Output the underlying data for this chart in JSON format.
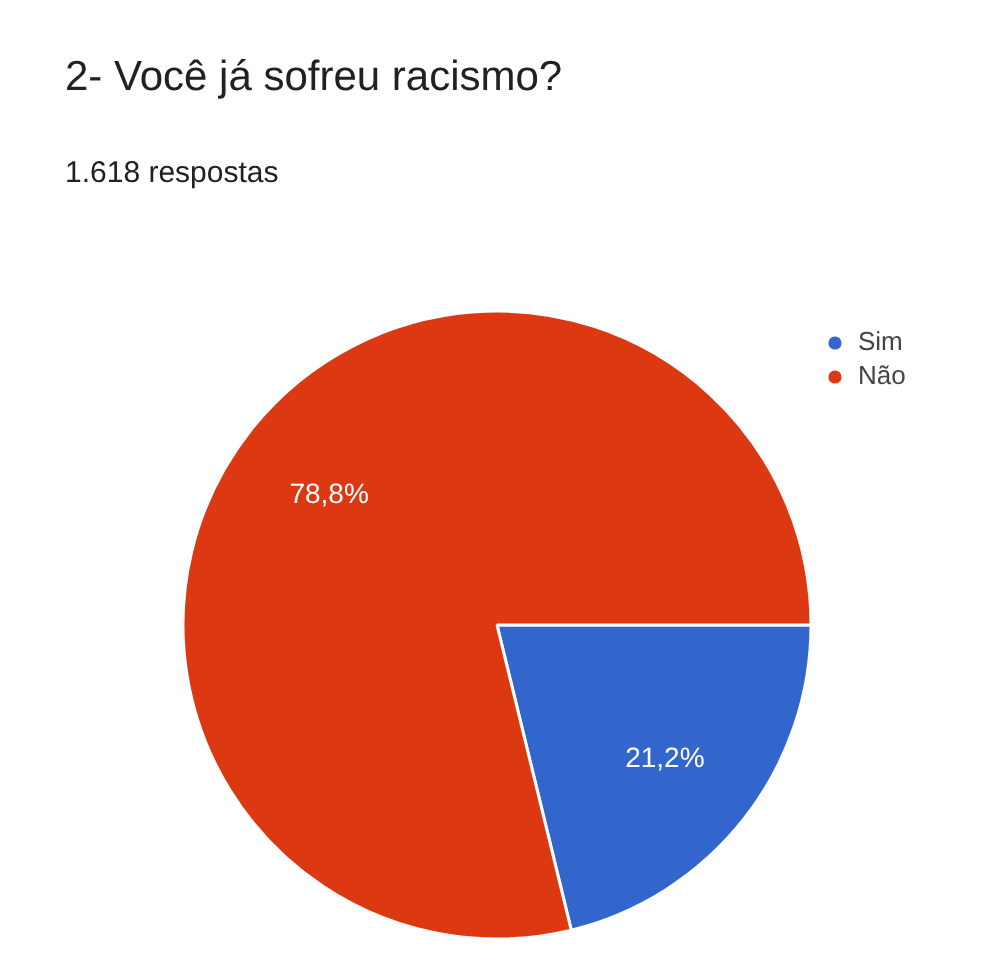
{
  "chart_data": {
    "type": "pie",
    "title": "2- Você já sofreu racismo?",
    "subtitle": "1.618 respostas",
    "categories": [
      "Sim",
      "Não"
    ],
    "values": [
      21.2,
      78.8
    ],
    "colors": [
      "#3366cc",
      "#dc3912"
    ],
    "value_labels": [
      "21,2%",
      "78,8%"
    ],
    "legend": "top right"
  }
}
